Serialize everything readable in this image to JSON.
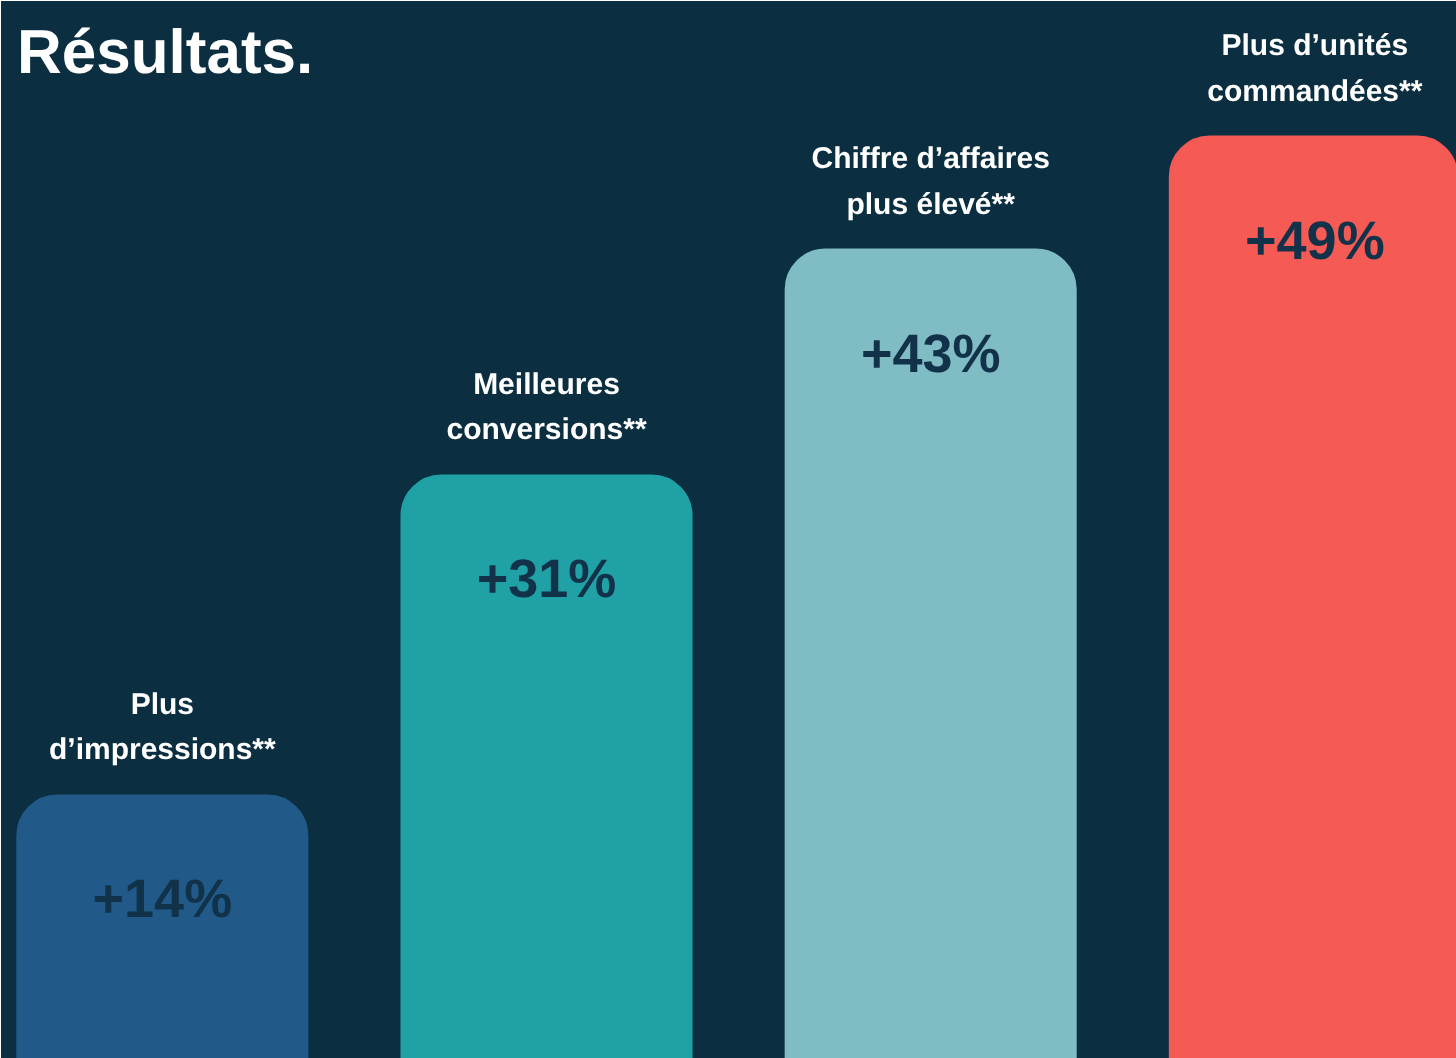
{
  "chart_data": {
    "type": "bar",
    "title": "Résultats.",
    "categories": [
      "Plus d’impressions**",
      "Meilleures conversions**",
      "Chiffre d’affaires plus élevé**",
      "Plus d’unités commandées**"
    ],
    "values": [
      14,
      31,
      43,
      49
    ],
    "value_labels": [
      "+14%",
      "+31%",
      "+43%",
      "+49%"
    ],
    "colors": [
      "#215a89",
      "#1fa1a5",
      "#7fbcc4",
      "#f65a55"
    ]
  }
}
